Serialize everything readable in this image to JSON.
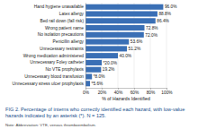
{
  "chart_data": {
    "type": "bar",
    "orientation": "horizontal",
    "title": "FIG 2. Percentage of interns who correctly identified each hazard, with low-value hazards indicated by an asterisk (*). N = 125.",
    "annotations": [
      "Note: Abbreviation: VTE, venous thromboembolism."
    ],
    "x_label": "% of Hazards Identified",
    "categories": [
      "Hand hygiene unavailable",
      "Latex allergy",
      "Bed rail down (fall risk)",
      "Wrong patient name",
      "No isolation precautions",
      "Penicillin allergy",
      "Unnecessary restraints",
      "Wrong medication administered",
      "Unnecessary Foley catheter",
      "No VTE prophylaxis",
      "Unnecessary blood transfusion",
      "Unnecessary stress ulcer prophylaxis"
    ],
    "values": [
      96.0,
      88.8,
      86.4,
      72.8,
      72.0,
      53.6,
      51.2,
      40.0,
      20.0,
      19.2,
      8.0,
      5.6
    ],
    "value_labels": [
      "96.0%",
      "88.8%",
      "86.4%",
      "72.8%",
      "72.0%",
      "53.6%",
      "51.2%",
      "40.0%",
      "*20.0%",
      "19.2%",
      "*8.0%",
      "*5.6%"
    ],
    "data_labels": true,
    "color": "#3a6fb5",
    "xlim": [
      0,
      100
    ],
    "xticks": [
      {
        "value": 0,
        "label": "0%"
      },
      {
        "value": 20,
        "label": "20%"
      },
      {
        "value": 40,
        "label": "40%"
      },
      {
        "value": 60,
        "label": "60%"
      },
      {
        "value": 80,
        "label": "80%"
      },
      {
        "value": 100,
        "label": "100%"
      }
    ],
    "grid": true
  }
}
